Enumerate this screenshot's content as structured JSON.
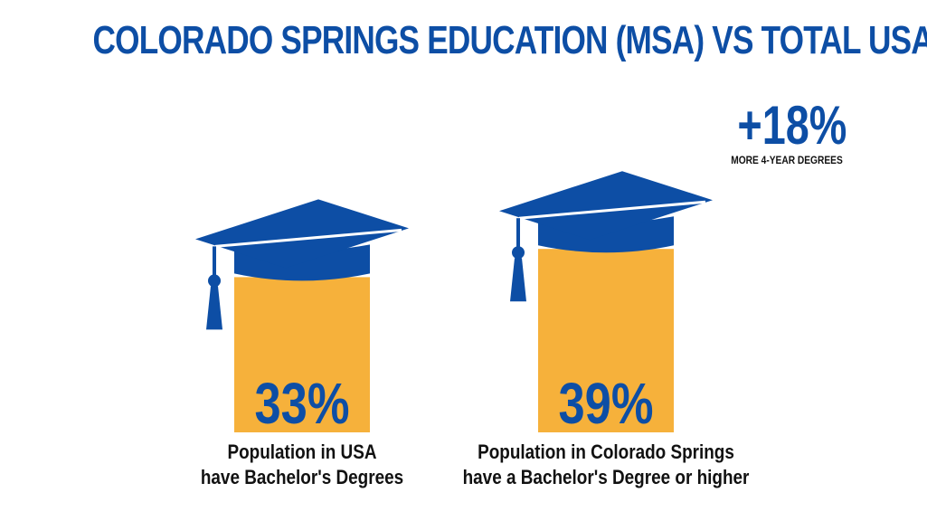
{
  "colors": {
    "accent": "#0d4ea5",
    "bar": "#f6b13b",
    "text": "#111111"
  },
  "chart_data": {
    "type": "bar",
    "title": "COLORADO SPRINGS EDUCATION (MSA) VS TOTAL USA",
    "categories": [
      "Population in USA\nhave Bachelor's Degrees",
      "Population in Colorado Springs\nhave a Bachelor's Degree or higher"
    ],
    "values": [
      33,
      39
    ],
    "value_labels": [
      "33%",
      "39%"
    ],
    "unit": "%",
    "icon": "graduation-cap-icon",
    "callout": {
      "value": "+18%",
      "label": "MORE 4-YEAR DEGREES"
    }
  }
}
